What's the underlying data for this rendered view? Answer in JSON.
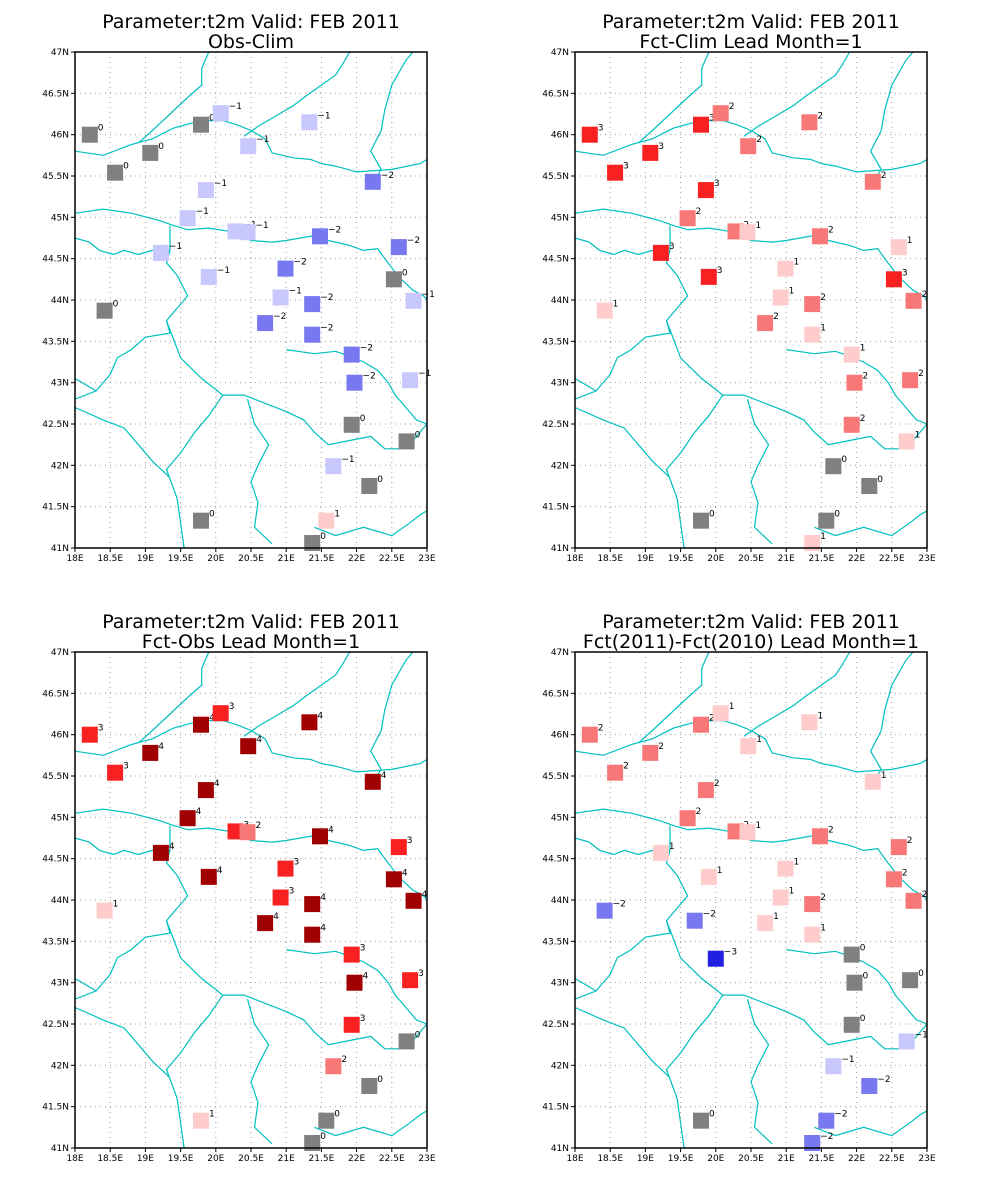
{
  "colors": {
    "coast": "#00c0c0",
    "grid": "#a0a0a0",
    "frame": "#000000",
    "zero": "#808080",
    "neg1": "#c8c8ff",
    "neg2": "#7878f0",
    "neg3": "#2020e0",
    "pos1": "#ffcccc",
    "pos2": "#f87878",
    "pos3": "#f82020",
    "pos4": "#a00000"
  },
  "axes": {
    "x_ticks": [
      "18E",
      "18.5E",
      "19E",
      "19.5E",
      "20E",
      "20.5E",
      "21E",
      "21.5E",
      "22E",
      "22.5E",
      "23E"
    ],
    "y_ticks": [
      "41N",
      "41.5N",
      "42N",
      "42.5N",
      "43N",
      "43.5N",
      "44N",
      "44.5N",
      "45N",
      "45.5N",
      "46N",
      "46.5N",
      "47N"
    ],
    "lon_range": [
      18,
      23
    ],
    "lat_range": [
      41,
      47
    ],
    "grid": "dotted"
  },
  "panels": [
    {
      "title1": "Parameter:t2m Valid: FEB 2011",
      "title2": "Obs-Clim",
      "stations": [
        {
          "lon": 18.21,
          "lat": 46.0,
          "v": 0
        },
        {
          "lon": 19.79,
          "lat": 46.12,
          "v": 0
        },
        {
          "lon": 20.07,
          "lat": 46.26,
          "v": -1
        },
        {
          "lon": 21.33,
          "lat": 46.15,
          "v": -1
        },
        {
          "lon": 19.07,
          "lat": 45.78,
          "v": 0
        },
        {
          "lon": 20.46,
          "lat": 45.86,
          "v": -1
        },
        {
          "lon": 18.57,
          "lat": 45.54,
          "v": 0
        },
        {
          "lon": 22.23,
          "lat": 45.43,
          "v": -2
        },
        {
          "lon": 19.86,
          "lat": 45.33,
          "v": -1
        },
        {
          "lon": 19.6,
          "lat": 44.99,
          "v": -1
        },
        {
          "lon": 20.28,
          "lat": 44.83,
          "v": -1
        },
        {
          "lon": 20.45,
          "lat": 44.82,
          "v": -1
        },
        {
          "lon": 21.48,
          "lat": 44.77,
          "v": -2
        },
        {
          "lon": 22.6,
          "lat": 44.64,
          "v": -2
        },
        {
          "lon": 19.22,
          "lat": 44.57,
          "v": -1
        },
        {
          "lon": 20.99,
          "lat": 44.38,
          "v": -2
        },
        {
          "lon": 19.9,
          "lat": 44.28,
          "v": -1
        },
        {
          "lon": 22.53,
          "lat": 44.25,
          "v": 0
        },
        {
          "lon": 20.92,
          "lat": 44.03,
          "v": -1
        },
        {
          "lon": 21.37,
          "lat": 43.95,
          "v": -2
        },
        {
          "lon": 22.81,
          "lat": 43.99,
          "v": -1
        },
        {
          "lon": 18.42,
          "lat": 43.87,
          "v": 0
        },
        {
          "lon": 20.7,
          "lat": 43.72,
          "v": -2
        },
        {
          "lon": 21.37,
          "lat": 43.58,
          "v": -2
        },
        {
          "lon": 21.93,
          "lat": 43.34,
          "v": -2
        },
        {
          "lon": 21.97,
          "lat": 43.0,
          "v": -2
        },
        {
          "lon": 22.76,
          "lat": 43.03,
          "v": -1
        },
        {
          "lon": 21.93,
          "lat": 42.49,
          "v": 0
        },
        {
          "lon": 22.71,
          "lat": 42.29,
          "v": 0
        },
        {
          "lon": 21.67,
          "lat": 41.99,
          "v": -1
        },
        {
          "lon": 22.18,
          "lat": 41.75,
          "v": 0
        },
        {
          "lon": 19.79,
          "lat": 41.33,
          "v": 0
        },
        {
          "lon": 21.57,
          "lat": 41.33,
          "v": 1
        },
        {
          "lon": 21.37,
          "lat": 41.06,
          "v": 0
        }
      ]
    },
    {
      "title1": "Parameter:t2m Valid: FEB 2011",
      "title2": "Fct-Clim Lead Month=1",
      "stations": [
        {
          "lon": 18.21,
          "lat": 46.0,
          "v": 3
        },
        {
          "lon": 19.79,
          "lat": 46.12,
          "v": 3
        },
        {
          "lon": 20.07,
          "lat": 46.26,
          "v": 2
        },
        {
          "lon": 21.33,
          "lat": 46.15,
          "v": 2
        },
        {
          "lon": 19.07,
          "lat": 45.78,
          "v": 3
        },
        {
          "lon": 20.46,
          "lat": 45.86,
          "v": 2
        },
        {
          "lon": 18.57,
          "lat": 45.54,
          "v": 3
        },
        {
          "lon": 22.23,
          "lat": 45.43,
          "v": 2
        },
        {
          "lon": 19.86,
          "lat": 45.33,
          "v": 3
        },
        {
          "lon": 19.6,
          "lat": 44.99,
          "v": 2
        },
        {
          "lon": 20.28,
          "lat": 44.83,
          "v": 2
        },
        {
          "lon": 20.45,
          "lat": 44.82,
          "v": 1
        },
        {
          "lon": 21.48,
          "lat": 44.77,
          "v": 2
        },
        {
          "lon": 22.6,
          "lat": 44.64,
          "v": 1
        },
        {
          "lon": 19.22,
          "lat": 44.57,
          "v": 3
        },
        {
          "lon": 20.99,
          "lat": 44.38,
          "v": 1
        },
        {
          "lon": 19.9,
          "lat": 44.28,
          "v": 3
        },
        {
          "lon": 22.53,
          "lat": 44.25,
          "v": 3
        },
        {
          "lon": 20.92,
          "lat": 44.03,
          "v": 1
        },
        {
          "lon": 21.37,
          "lat": 43.95,
          "v": 2
        },
        {
          "lon": 22.81,
          "lat": 43.99,
          "v": 2
        },
        {
          "lon": 18.42,
          "lat": 43.87,
          "v": 1
        },
        {
          "lon": 20.7,
          "lat": 43.72,
          "v": 2
        },
        {
          "lon": 21.37,
          "lat": 43.58,
          "v": 1
        },
        {
          "lon": 21.93,
          "lat": 43.34,
          "v": 1
        },
        {
          "lon": 21.97,
          "lat": 43.0,
          "v": 2
        },
        {
          "lon": 22.76,
          "lat": 43.03,
          "v": 2
        },
        {
          "lon": 21.93,
          "lat": 42.49,
          "v": 2
        },
        {
          "lon": 22.71,
          "lat": 42.29,
          "v": 1
        },
        {
          "lon": 21.67,
          "lat": 41.99,
          "v": 0
        },
        {
          "lon": 22.18,
          "lat": 41.75,
          "v": 0
        },
        {
          "lon": 19.79,
          "lat": 41.33,
          "v": 0
        },
        {
          "lon": 21.57,
          "lat": 41.33,
          "v": 0
        },
        {
          "lon": 21.37,
          "lat": 41.06,
          "v": 1
        }
      ]
    },
    {
      "title1": "Parameter:t2m Valid: FEB 2011",
      "title2": "Fct-Obs Lead Month=1",
      "stations": [
        {
          "lon": 18.21,
          "lat": 46.0,
          "v": 3
        },
        {
          "lon": 19.79,
          "lat": 46.12,
          "v": 4
        },
        {
          "lon": 20.07,
          "lat": 46.26,
          "v": 3
        },
        {
          "lon": 21.33,
          "lat": 46.15,
          "v": 4
        },
        {
          "lon": 19.07,
          "lat": 45.78,
          "v": 4
        },
        {
          "lon": 20.46,
          "lat": 45.86,
          "v": 4
        },
        {
          "lon": 18.57,
          "lat": 45.54,
          "v": 3
        },
        {
          "lon": 22.23,
          "lat": 45.43,
          "v": 4
        },
        {
          "lon": 19.86,
          "lat": 45.33,
          "v": 4
        },
        {
          "lon": 19.6,
          "lat": 44.99,
          "v": 4
        },
        {
          "lon": 20.28,
          "lat": 44.83,
          "v": 3
        },
        {
          "lon": 20.45,
          "lat": 44.82,
          "v": 2
        },
        {
          "lon": 21.48,
          "lat": 44.77,
          "v": 4
        },
        {
          "lon": 22.6,
          "lat": 44.64,
          "v": 3
        },
        {
          "lon": 19.22,
          "lat": 44.57,
          "v": 4
        },
        {
          "lon": 20.99,
          "lat": 44.38,
          "v": 3
        },
        {
          "lon": 19.9,
          "lat": 44.28,
          "v": 4
        },
        {
          "lon": 22.53,
          "lat": 44.25,
          "v": 4
        },
        {
          "lon": 20.92,
          "lat": 44.03,
          "v": 3
        },
        {
          "lon": 21.37,
          "lat": 43.95,
          "v": 4
        },
        {
          "lon": 22.81,
          "lat": 43.99,
          "v": 4
        },
        {
          "lon": 18.42,
          "lat": 43.87,
          "v": 1
        },
        {
          "lon": 20.7,
          "lat": 43.72,
          "v": 4
        },
        {
          "lon": 21.37,
          "lat": 43.58,
          "v": 4
        },
        {
          "lon": 21.93,
          "lat": 43.34,
          "v": 3
        },
        {
          "lon": 21.97,
          "lat": 43.0,
          "v": 4
        },
        {
          "lon": 22.76,
          "lat": 43.03,
          "v": 3
        },
        {
          "lon": 21.93,
          "lat": 42.49,
          "v": 3
        },
        {
          "lon": 22.71,
          "lat": 42.29,
          "v": 0
        },
        {
          "lon": 21.67,
          "lat": 41.99,
          "v": 2
        },
        {
          "lon": 22.18,
          "lat": 41.75,
          "v": 0
        },
        {
          "lon": 19.79,
          "lat": 41.33,
          "v": 1
        },
        {
          "lon": 21.57,
          "lat": 41.33,
          "v": 0
        },
        {
          "lon": 21.37,
          "lat": 41.06,
          "v": 0
        }
      ]
    },
    {
      "title1": "Parameter:t2m Valid: FEB 2011",
      "title2": "Fct(2011)-Fct(2010) Lead Month=1",
      "stations": [
        {
          "lon": 18.21,
          "lat": 46.0,
          "v": 2
        },
        {
          "lon": 19.79,
          "lat": 46.12,
          "v": 2
        },
        {
          "lon": 20.07,
          "lat": 46.26,
          "v": 1
        },
        {
          "lon": 21.33,
          "lat": 46.15,
          "v": 1
        },
        {
          "lon": 19.07,
          "lat": 45.78,
          "v": 2
        },
        {
          "lon": 20.46,
          "lat": 45.86,
          "v": 1
        },
        {
          "lon": 18.57,
          "lat": 45.54,
          "v": 2
        },
        {
          "lon": 22.23,
          "lat": 45.43,
          "v": 1
        },
        {
          "lon": 19.86,
          "lat": 45.33,
          "v": 2
        },
        {
          "lon": 19.6,
          "lat": 44.99,
          "v": 2
        },
        {
          "lon": 20.28,
          "lat": 44.83,
          "v": 2
        },
        {
          "lon": 20.45,
          "lat": 44.82,
          "v": 1
        },
        {
          "lon": 21.48,
          "lat": 44.77,
          "v": 2
        },
        {
          "lon": 22.6,
          "lat": 44.64,
          "v": 2
        },
        {
          "lon": 19.22,
          "lat": 44.57,
          "v": 1
        },
        {
          "lon": 20.99,
          "lat": 44.38,
          "v": 1
        },
        {
          "lon": 19.9,
          "lat": 44.28,
          "v": 1
        },
        {
          "lon": 22.53,
          "lat": 44.25,
          "v": 2
        },
        {
          "lon": 20.92,
          "lat": 44.03,
          "v": 1
        },
        {
          "lon": 21.37,
          "lat": 43.95,
          "v": 2
        },
        {
          "lon": 22.81,
          "lat": 43.99,
          "v": 2
        },
        {
          "lon": 18.42,
          "lat": 43.87,
          "v": -2
        },
        {
          "lon": 19.7,
          "lat": 43.75,
          "v": -2
        },
        {
          "lon": 20.7,
          "lat": 43.72,
          "v": 1
        },
        {
          "lon": 21.37,
          "lat": 43.58,
          "v": 1
        },
        {
          "lon": 21.93,
          "lat": 43.34,
          "v": 0
        },
        {
          "lon": 20.0,
          "lat": 43.29,
          "v": -3
        },
        {
          "lon": 21.97,
          "lat": 43.0,
          "v": 0
        },
        {
          "lon": 22.76,
          "lat": 43.03,
          "v": 0
        },
        {
          "lon": 21.93,
          "lat": 42.49,
          "v": 0
        },
        {
          "lon": 22.71,
          "lat": 42.29,
          "v": -1
        },
        {
          "lon": 21.67,
          "lat": 41.99,
          "v": -1
        },
        {
          "lon": 22.18,
          "lat": 41.75,
          "v": -2
        },
        {
          "lon": 19.79,
          "lat": 41.33,
          "v": 0
        },
        {
          "lon": 21.57,
          "lat": 41.33,
          "v": -2
        },
        {
          "lon": 21.37,
          "lat": 41.06,
          "v": -2
        }
      ]
    }
  ]
}
